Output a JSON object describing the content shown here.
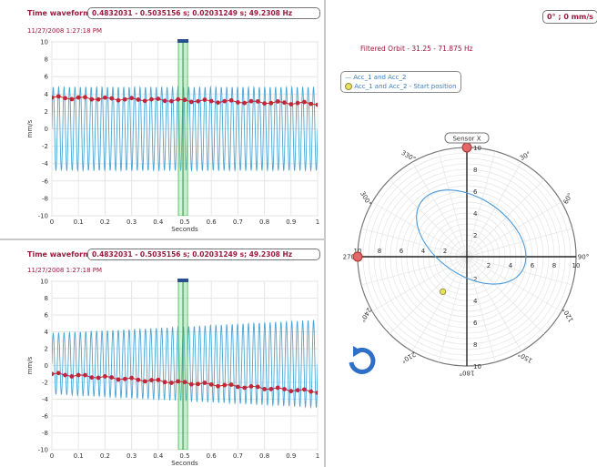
{
  "top_panel": {
    "title": "Time waveform",
    "info": "0.4832031 - 0.5035156 s; 0.02031249 s; 49.2308 Hz",
    "date": "11/27/2008 1:27:18 PM",
    "ylabel": "mm/s",
    "xlabel": "Seconds"
  },
  "bottom_panel": {
    "title": "Time waveform",
    "info": "0.4832031 - 0.5035156 s; 0.02031249 s; 49.2308 Hz",
    "date": "11/27/2008 1:27:18 PM",
    "ylabel": "mm/s",
    "xlabel": "Seconds"
  },
  "orbit_panel": {
    "angle_readout": "0° ; 0 mm/s",
    "filter_title": "Filtered Orbit - 31.25 - 71.875 Hz",
    "legend": [
      {
        "label": "Acc_1 and Acc_2",
        "marker": "line"
      },
      {
        "label": "Acc_1 and Acc_2 - Start position",
        "marker": "dot"
      }
    ],
    "sensor_label": "Sensor X",
    "rotate_icon": "rotate-icon"
  },
  "colors": {
    "wave": "#4aa6d6",
    "marker": "#c0273a",
    "cursor": "#5cc46a",
    "title": "#9a1b3e",
    "orbit": "#4a9ad8",
    "start_dot": "#e8e060"
  },
  "chart_data": [
    {
      "type": "line",
      "title": "Time waveform",
      "xlabel": "Seconds",
      "ylabel": "mm/s",
      "xlim": [
        0,
        1
      ],
      "ylim": [
        -10,
        10
      ],
      "x_ticks": [
        "0",
        "0.1",
        "0.2",
        "0.3",
        "0.4",
        "0.5",
        "0.6",
        "0.7",
        "0.8",
        "0.9",
        "1"
      ],
      "y_ticks": [
        "10",
        "8",
        "6",
        "4",
        "2",
        "0",
        "-2",
        "-4",
        "-6",
        "-8",
        "-10"
      ],
      "series": [
        {
          "kind": "oscillation",
          "amplitude_start": 4.8,
          "amplitude_end": 4.8,
          "offset": 0,
          "cycles": 49
        },
        {
          "kind": "markers",
          "x": [
            0.0,
            0.025,
            0.05,
            0.075,
            0.1,
            0.125,
            0.15,
            0.175,
            0.2,
            0.225,
            0.25,
            0.275,
            0.3,
            0.325,
            0.35,
            0.375,
            0.4,
            0.425,
            0.45,
            0.475,
            0.5,
            0.525,
            0.55,
            0.575,
            0.6,
            0.625,
            0.65,
            0.675,
            0.7,
            0.725,
            0.75,
            0.775,
            0.8,
            0.825,
            0.85,
            0.875,
            0.9,
            0.925,
            0.95,
            0.975,
            1.0
          ],
          "y_start": 3.6,
          "y_end": 2.9
        }
      ],
      "cursor_x": 0.4933
    },
    {
      "type": "line",
      "title": "Time waveform",
      "xlabel": "Seconds",
      "ylabel": "mm/s",
      "xlim": [
        0,
        1
      ],
      "ylim": [
        -10,
        10
      ],
      "x_ticks": [
        "0",
        "0.1",
        "0.2",
        "0.3",
        "0.4",
        "0.5",
        "0.6",
        "0.7",
        "0.8",
        "0.9",
        "1"
      ],
      "y_ticks": [
        "10",
        "8",
        "6",
        "4",
        "2",
        "0",
        "-2",
        "-4",
        "-6",
        "-8",
        "-10"
      ],
      "series": [
        {
          "kind": "oscillation",
          "amplitude_start": 3.6,
          "amplitude_end": 5.2,
          "offset": 0.2,
          "cycles": 49
        },
        {
          "kind": "markers",
          "x": [
            0.0,
            0.025,
            0.05,
            0.075,
            0.1,
            0.125,
            0.15,
            0.175,
            0.2,
            0.225,
            0.25,
            0.275,
            0.3,
            0.325,
            0.35,
            0.375,
            0.4,
            0.425,
            0.45,
            0.475,
            0.5,
            0.525,
            0.55,
            0.575,
            0.6,
            0.625,
            0.65,
            0.675,
            0.7,
            0.725,
            0.75,
            0.775,
            0.8,
            0.825,
            0.85,
            0.875,
            0.9,
            0.925,
            0.95,
            0.975,
            1.0
          ],
          "y_start": -1.0,
          "y_end": -3.1
        }
      ],
      "cursor_x": 0.4933
    },
    {
      "type": "scatter",
      "title": "Filtered Orbit - 31.25 - 71.875 Hz",
      "radial_range": [
        0,
        10
      ],
      "radial_ticks": [
        "10",
        "8",
        "6",
        "4",
        "2"
      ],
      "axis_ticks_positive": [
        "2",
        "4",
        "6",
        "8",
        "10"
      ],
      "angle_labels": [
        "0°",
        "30°",
        "60°",
        "90°",
        "120°",
        "150°",
        "180°",
        "210°",
        "240°",
        "270°",
        "300°",
        "330°"
      ],
      "orbit_ellipse": {
        "center_x": 0.4,
        "center_y": 1.8,
        "semi_major": 5.6,
        "semi_minor": 3.5,
        "rotation_deg": -35
      },
      "start_position": {
        "x": -2.2,
        "y": -3.2
      }
    }
  ]
}
